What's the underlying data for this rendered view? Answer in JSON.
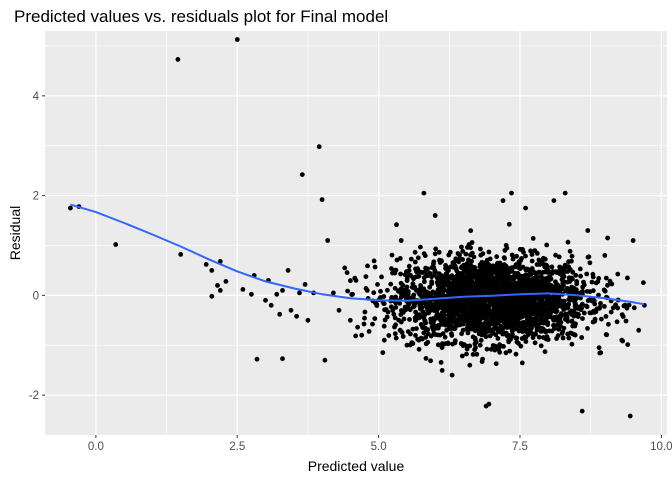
{
  "chart_data": {
    "type": "scatter",
    "title": "Predicted values vs. residuals plot for Final model",
    "xlabel": "Predicted value",
    "ylabel": "Residual",
    "xlim": [
      -0.9,
      10.1
    ],
    "ylim": [
      -2.8,
      5.3
    ],
    "x_ticks": [
      0.0,
      2.5,
      5.0,
      7.5,
      10.0
    ],
    "x_tick_labels": [
      "0.0",
      "2.5",
      "5.0",
      "7.5",
      "10.0"
    ],
    "y_ticks": [
      -2,
      0,
      2,
      4
    ],
    "y_tick_labels": [
      "-2",
      "0",
      "2",
      "4"
    ],
    "grid": true,
    "legend": "none",
    "colors": {
      "panel_background": "#ebebeb",
      "grid": "#ffffff",
      "points": "#000000",
      "smooth_line": "#3366ff"
    },
    "points": [
      [
        -0.45,
        1.75
      ],
      [
        -0.3,
        1.78
      ],
      [
        0.35,
        1.02
      ],
      [
        1.45,
        4.73
      ],
      [
        2.5,
        5.13
      ],
      [
        1.5,
        0.82
      ],
      [
        1.95,
        0.62
      ],
      [
        2.05,
        0.5
      ],
      [
        2.2,
        0.68
      ],
      [
        2.3,
        0.28
      ],
      [
        2.05,
        -0.02
      ],
      [
        2.15,
        0.2
      ],
      [
        2.2,
        0.1
      ],
      [
        2.6,
        0.12
      ],
      [
        2.75,
        0.02
      ],
      [
        2.8,
        0.4
      ],
      [
        2.85,
        -1.28
      ],
      [
        3.0,
        -0.1
      ],
      [
        3.05,
        0.3
      ],
      [
        3.1,
        -0.2
      ],
      [
        3.2,
        0.02
      ],
      [
        3.25,
        -0.38
      ],
      [
        3.3,
        0.1
      ],
      [
        3.4,
        0.5
      ],
      [
        3.45,
        -0.3
      ],
      [
        3.55,
        -0.42
      ],
      [
        3.6,
        0.05
      ],
      [
        3.3,
        -1.27
      ],
      [
        3.65,
        2.42
      ],
      [
        3.7,
        0.22
      ],
      [
        3.75,
        -0.5
      ],
      [
        3.85,
        0.05
      ],
      [
        3.95,
        2.98
      ],
      [
        4.0,
        1.92
      ],
      [
        4.05,
        -1.3
      ],
      [
        4.1,
        1.1
      ],
      [
        4.2,
        0.05
      ],
      [
        4.3,
        -0.3
      ],
      [
        4.4,
        0.55
      ],
      [
        4.5,
        -0.5
      ],
      [
        4.6,
        0.3
      ],
      [
        4.7,
        -0.8
      ],
      [
        4.8,
        0.1
      ],
      [
        5.1,
        -0.9
      ],
      [
        5.4,
        1.1
      ],
      [
        5.8,
        2.05
      ],
      [
        5.5,
        -1.0
      ],
      [
        6.0,
        1.6
      ],
      [
        6.3,
        -1.6
      ],
      [
        6.9,
        -2.22
      ],
      [
        6.95,
        -2.18
      ],
      [
        7.2,
        1.9
      ],
      [
        7.35,
        2.05
      ],
      [
        7.6,
        1.75
      ],
      [
        8.1,
        1.9
      ],
      [
        8.3,
        2.05
      ],
      [
        8.6,
        -2.32
      ],
      [
        8.7,
        1.3
      ],
      [
        8.9,
        -1.05
      ],
      [
        9.0,
        0.8
      ],
      [
        9.05,
        1.15
      ],
      [
        9.15,
        -0.25
      ],
      [
        9.3,
        -0.9
      ],
      [
        9.4,
        0.35
      ],
      [
        9.45,
        -2.42
      ],
      [
        9.5,
        1.1
      ],
      [
        9.6,
        -0.7
      ],
      [
        9.7,
        -0.2
      ]
    ],
    "dense_cloud": {
      "count": 2600,
      "x_mean": 7.0,
      "x_sd": 0.85,
      "y_mean": -0.08,
      "y_sd": 0.42,
      "x_range": [
        4.4,
        9.7
      ],
      "y_range": [
        -1.75,
        1.75
      ]
    },
    "smooth_line": [
      [
        -0.45,
        1.82
      ],
      [
        0.0,
        1.67
      ],
      [
        0.5,
        1.45
      ],
      [
        1.0,
        1.22
      ],
      [
        1.5,
        0.98
      ],
      [
        2.0,
        0.72
      ],
      [
        2.5,
        0.48
      ],
      [
        3.0,
        0.28
      ],
      [
        3.5,
        0.14
      ],
      [
        4.0,
        0.02
      ],
      [
        4.5,
        -0.06
      ],
      [
        5.0,
        -0.1
      ],
      [
        5.5,
        -0.11
      ],
      [
        6.0,
        -0.07
      ],
      [
        6.5,
        -0.03
      ],
      [
        7.0,
        -0.01
      ],
      [
        7.5,
        0.02
      ],
      [
        8.0,
        0.04
      ],
      [
        8.5,
        0.0
      ],
      [
        9.0,
        -0.06
      ],
      [
        9.5,
        -0.14
      ],
      [
        9.7,
        -0.18
      ]
    ]
  }
}
